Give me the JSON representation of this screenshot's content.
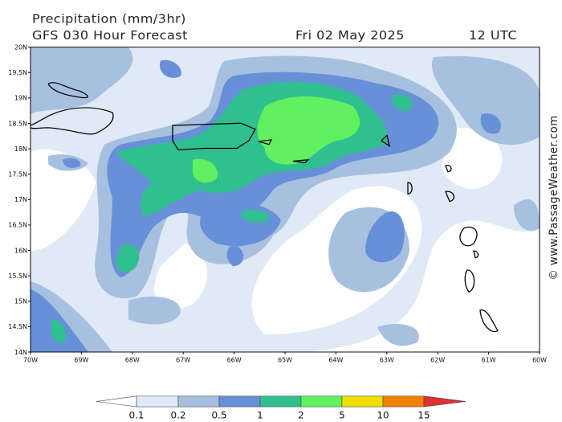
{
  "header": {
    "title": "Precipitation (mm/3hr)",
    "model": "GFS 030 Hour Forecast",
    "date": "Fri 02 May 2025",
    "time": "12 UTC"
  },
  "map": {
    "lat_labels": [
      "20N",
      "19.5N",
      "19N",
      "18.5N",
      "18N",
      "17.5N",
      "17N",
      "16.5N",
      "16N",
      "15.5N",
      "15N",
      "14.5N",
      "14N"
    ],
    "lon_labels": [
      "70W",
      "69W",
      "68W",
      "67W",
      "66W",
      "65W",
      "64W",
      "63W",
      "62W",
      "61W",
      "60W"
    ]
  },
  "legend": {
    "labels": [
      "0.1",
      "0.2",
      "0.5",
      "1",
      "2",
      "5",
      "10",
      "15"
    ]
  },
  "credit": "© www.PassageWeather.com"
}
